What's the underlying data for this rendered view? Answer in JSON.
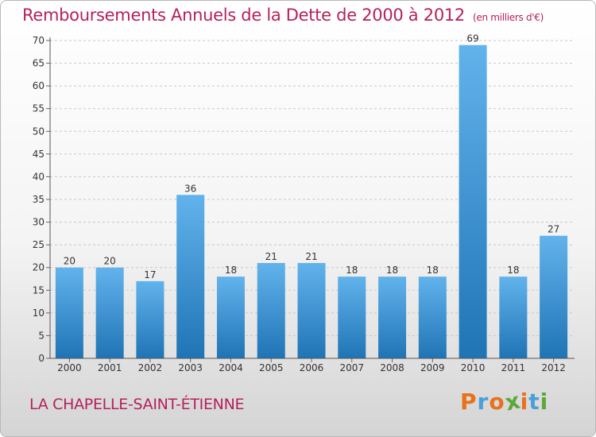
{
  "header": {
    "title": "Remboursements Annuels de la Dette de 2000 à 2012",
    "unit": "(en milliers d'€)"
  },
  "footer": {
    "commune": "LA CHAPELLE-SAINT-ÉTIENNE",
    "logo": "Proxiti"
  },
  "colors": {
    "title": "#b5215c",
    "bar_top": "#62b3ec",
    "bar_bottom": "#1f74b5",
    "logo_letters": [
      "#e8711c",
      "#4a9fdb",
      "#e8711c",
      "#5aa83a",
      "#e8711c",
      "#4a9fdb",
      "#5aa83a"
    ]
  },
  "chart_data": {
    "type": "bar",
    "title": "Remboursements Annuels de la Dette de 2000 à 2012",
    "ylabel": "",
    "xlabel": "",
    "categories": [
      "2000",
      "2001",
      "2002",
      "2003",
      "2004",
      "2005",
      "2006",
      "2007",
      "2008",
      "2009",
      "2010",
      "2011",
      "2012"
    ],
    "values": [
      20,
      20,
      17,
      36,
      18,
      21,
      21,
      18,
      18,
      18,
      69,
      18,
      27
    ],
    "ylim": [
      0,
      70
    ],
    "yticks": [
      0,
      5,
      10,
      15,
      20,
      25,
      30,
      35,
      40,
      45,
      50,
      55,
      60,
      65,
      70
    ],
    "grid": "horizontal-dashed",
    "legend": "none"
  }
}
